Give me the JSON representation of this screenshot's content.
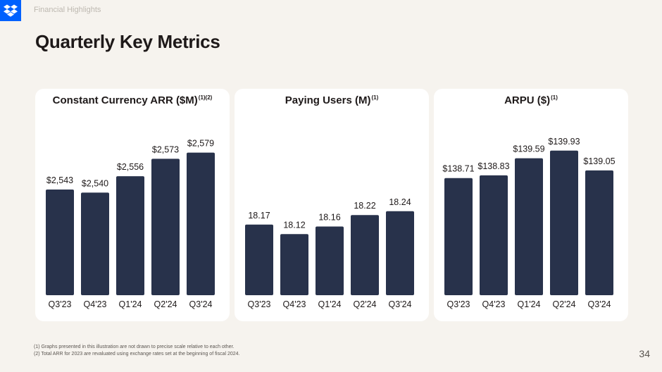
{
  "header": {
    "section_label": "Financial Highlights",
    "title": "Quarterly Key Metrics",
    "logo_icon": "dropbox-logo-icon"
  },
  "colors": {
    "bar": "#28324b",
    "background": "#f6f3ee",
    "card": "#ffffff",
    "logo": "#0061fe"
  },
  "chart_data": [
    {
      "type": "bar",
      "title": "Constant Currency ARR ($M)",
      "title_note": "(1)(2)",
      "categories": [
        "Q3'23",
        "Q4'23",
        "Q1'24",
        "Q2'24",
        "Q3'24"
      ],
      "values": [
        2543,
        2540,
        2556,
        2573,
        2579
      ],
      "value_labels": [
        "$2,543",
        "$2,540",
        "$2,556",
        "$2,573",
        "$2,579"
      ],
      "ylim": [
        2440,
        2600
      ]
    },
    {
      "type": "bar",
      "title": "Paying Users (M)",
      "title_note": "(1)",
      "categories": [
        "Q3'23",
        "Q4'23",
        "Q1'24",
        "Q2'24",
        "Q3'24"
      ],
      "values": [
        18.17,
        18.12,
        18.16,
        18.22,
        18.24
      ],
      "value_labels": [
        "18.17",
        "18.12",
        "18.16",
        "18.22",
        "18.24"
      ],
      "ylim": [
        17.8,
        18.66
      ]
    },
    {
      "type": "bar",
      "title": "ARPU ($)",
      "title_note": "(1)",
      "categories": [
        "Q3'23",
        "Q4'23",
        "Q1'24",
        "Q2'24",
        "Q3'24"
      ],
      "values": [
        138.71,
        138.83,
        139.59,
        139.93,
        139.05
      ],
      "value_labels": [
        "$138.71",
        "$138.83",
        "$139.59",
        "$139.93",
        "$139.05"
      ],
      "ylim": [
        133.5,
        140.8
      ]
    }
  ],
  "footnotes": [
    "(1) Graphs presented in this illustration are not drawn to precise scale relative to each other.",
    "(2) Total ARR for 2023 are revaluated using exchange rates set at the beginning of fiscal 2024."
  ],
  "page_number": "34"
}
